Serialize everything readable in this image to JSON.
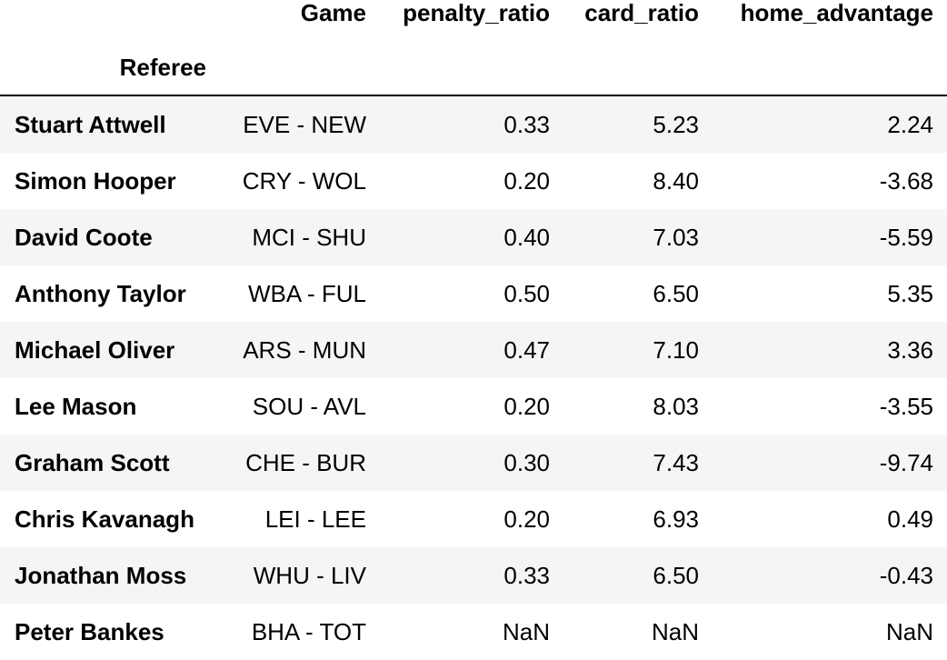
{
  "table": {
    "columns": [
      "Game",
      "penalty_ratio",
      "card_ratio",
      "home_advantage"
    ],
    "index_name": "Referee",
    "rows": [
      {
        "referee": "Stuart Attwell",
        "game": "EVE - NEW",
        "penalty_ratio": "0.33",
        "card_ratio": "5.23",
        "home_advantage": "2.24"
      },
      {
        "referee": "Simon Hooper",
        "game": "CRY - WOL",
        "penalty_ratio": "0.20",
        "card_ratio": "8.40",
        "home_advantage": "-3.68"
      },
      {
        "referee": "David Coote",
        "game": "MCI - SHU",
        "penalty_ratio": "0.40",
        "card_ratio": "7.03",
        "home_advantage": "-5.59"
      },
      {
        "referee": "Anthony Taylor",
        "game": "WBA - FUL",
        "penalty_ratio": "0.50",
        "card_ratio": "6.50",
        "home_advantage": "5.35"
      },
      {
        "referee": "Michael Oliver",
        "game": "ARS - MUN",
        "penalty_ratio": "0.47",
        "card_ratio": "7.10",
        "home_advantage": "3.36"
      },
      {
        "referee": "Lee Mason",
        "game": "SOU - AVL",
        "penalty_ratio": "0.20",
        "card_ratio": "8.03",
        "home_advantage": "-3.55"
      },
      {
        "referee": "Graham Scott",
        "game": "CHE - BUR",
        "penalty_ratio": "0.30",
        "card_ratio": "7.43",
        "home_advantage": "-9.74"
      },
      {
        "referee": "Chris Kavanagh",
        "game": "LEI - LEE",
        "penalty_ratio": "0.20",
        "card_ratio": "6.93",
        "home_advantage": "0.49"
      },
      {
        "referee": "Jonathan Moss",
        "game": "WHU - LIV",
        "penalty_ratio": "0.33",
        "card_ratio": "6.50",
        "home_advantage": "-0.43"
      },
      {
        "referee": "Peter Bankes",
        "game": "BHA - TOT",
        "penalty_ratio": "NaN",
        "card_ratio": "NaN",
        "home_advantage": "NaN"
      }
    ]
  }
}
